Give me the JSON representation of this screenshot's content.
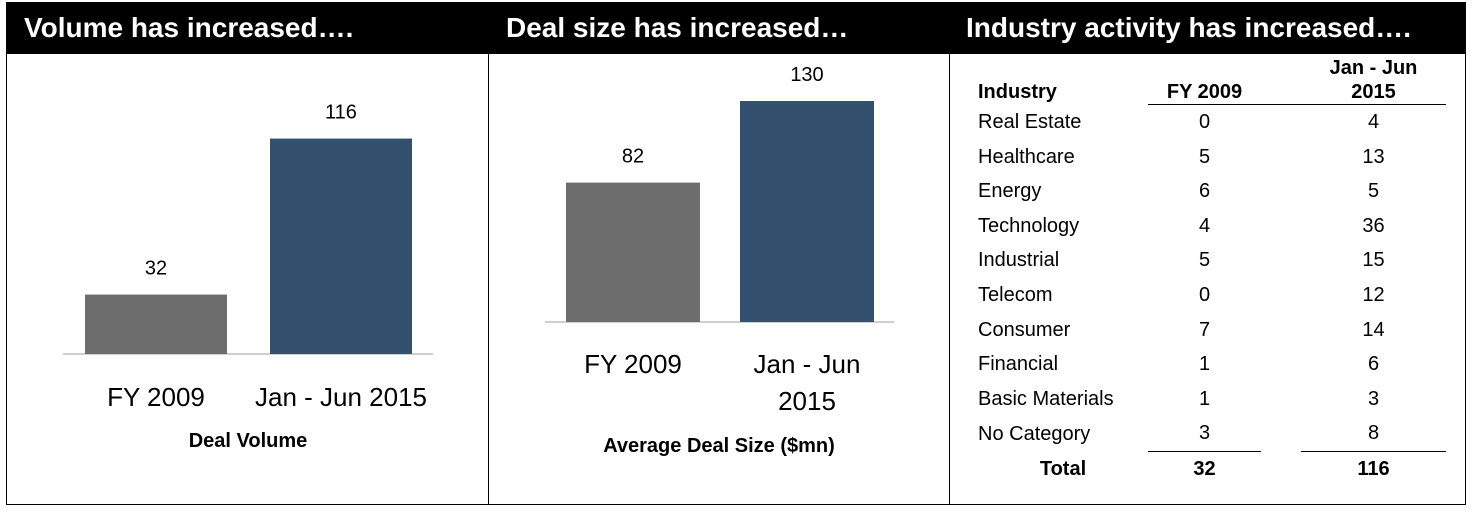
{
  "titles": {
    "volume": "Volume has increased….",
    "deal_size": "Deal size has increased…",
    "industry": "Industry activity has increased…."
  },
  "colors": {
    "fy2009": "#6d6d6d",
    "jan_jun_2015": "#33516f",
    "header_bg": "#000000"
  },
  "chart_data": [
    {
      "type": "bar",
      "categories": [
        "FY 2009",
        "Jan - Jun 2015"
      ],
      "values": [
        32,
        116
      ],
      "data_labels": [
        "32",
        "116"
      ],
      "title": "",
      "xlabel": "Deal Volume",
      "ylabel": "",
      "ylim": [
        0,
        140
      ],
      "grid": false
    },
    {
      "type": "bar",
      "categories": [
        "FY 2009",
        "Jan - Jun 2015"
      ],
      "category_lines": [
        [
          "FY 2009"
        ],
        [
          "Jan - Jun",
          "2015"
        ]
      ],
      "values": [
        82,
        130
      ],
      "data_labels": [
        "82",
        "130"
      ],
      "title": "",
      "xlabel": "Average Deal Size ($mn)",
      "ylabel": "",
      "ylim": [
        0,
        150
      ],
      "grid": false
    },
    {
      "type": "table",
      "columns": [
        "Industry",
        "FY 2009",
        "Jan - Jun 2015"
      ],
      "column_lines": [
        [
          "Industry"
        ],
        [
          "FY 2009"
        ],
        [
          "Jan - Jun",
          "2015"
        ]
      ],
      "rows": [
        [
          "Real Estate",
          "0",
          "4"
        ],
        [
          "Healthcare",
          "5",
          "13"
        ],
        [
          "Energy",
          "6",
          "5"
        ],
        [
          "Technology",
          "4",
          "36"
        ],
        [
          "Industrial",
          "5",
          "15"
        ],
        [
          "Telecom",
          "0",
          "12"
        ],
        [
          "Consumer",
          "7",
          "14"
        ],
        [
          "Financial",
          "1",
          "6"
        ],
        [
          "Basic Materials",
          "1",
          "3"
        ],
        [
          "No Category",
          "3",
          "8"
        ]
      ],
      "total": [
        "Total",
        "32",
        "116"
      ]
    }
  ]
}
